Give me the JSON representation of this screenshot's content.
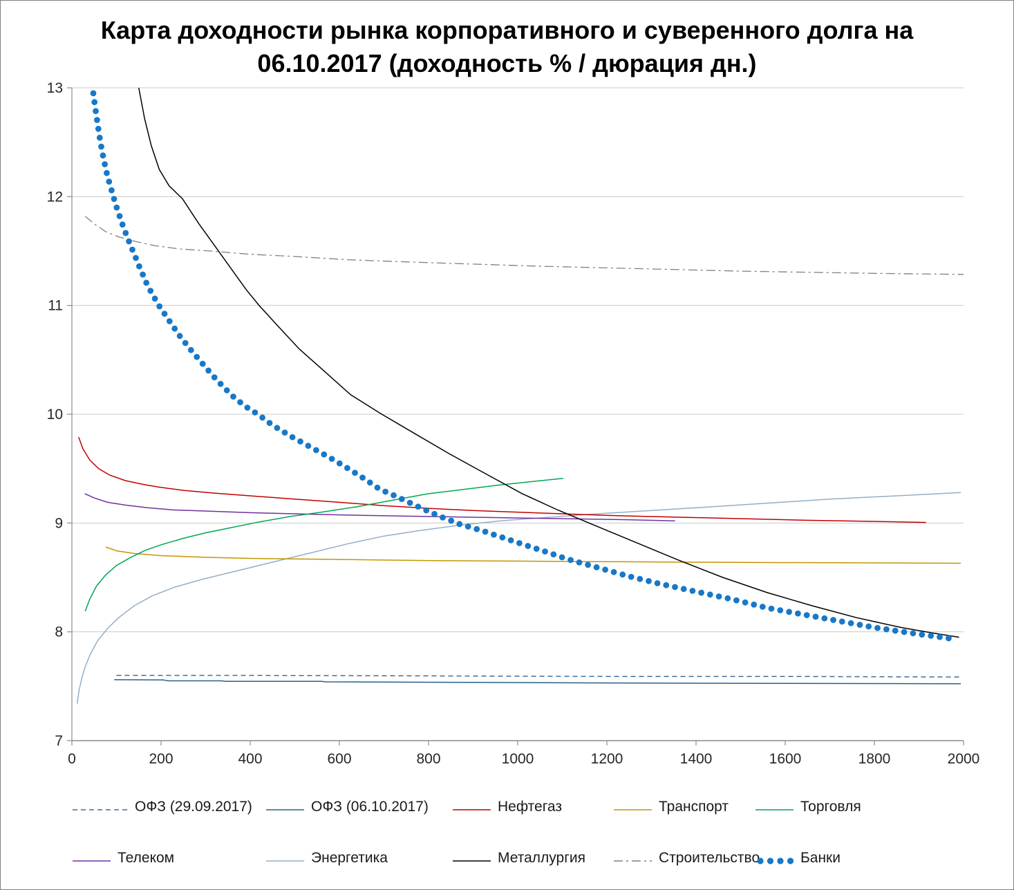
{
  "title": {
    "line1": "Карта доходности рынка корпоративного и суверенного долга на",
    "line2": "06.10.2017 (доходность % / дюрация дн.)"
  },
  "chart_data": {
    "type": "line",
    "title": "Карта доходности рынка корпоративного и суверенного долга на 06.10.2017 (доходность % / дюрация дн.)",
    "xlim": [
      0,
      2000
    ],
    "ylim": [
      7,
      13
    ],
    "xticks": [
      "0",
      "200",
      "400",
      "600",
      "800",
      "1000",
      "1200",
      "1400",
      "1600",
      "1800",
      "2000"
    ],
    "yticks": [
      "7",
      "8",
      "9",
      "10",
      "11",
      "12",
      "13"
    ],
    "grid": "horizontal",
    "legend_position": "bottom",
    "axis_color": "#8C8C8C",
    "grid_color": "#C9C9C9",
    "tick_label_color": "#262626",
    "series": [
      {
        "name": "ОФЗ (29.09.2017)",
        "color": "#3C6E9C",
        "style": "dashed",
        "points": [
          [
            100,
            7.6
          ],
          [
            400,
            7.6
          ],
          [
            800,
            7.595
          ],
          [
            1200,
            7.59
          ],
          [
            1600,
            7.59
          ],
          [
            1992,
            7.585
          ]
        ]
      },
      {
        "name": "ОФЗ (06.10.2017)",
        "color": "#2A5E86",
        "style": "solid",
        "points": [
          [
            95,
            7.56
          ],
          [
            205,
            7.558
          ],
          [
            215,
            7.55
          ],
          [
            335,
            7.55
          ],
          [
            345,
            7.545
          ],
          [
            560,
            7.545
          ],
          [
            570,
            7.54
          ],
          [
            900,
            7.535
          ],
          [
            1200,
            7.53
          ],
          [
            1500,
            7.527
          ],
          [
            1994,
            7.523
          ]
        ]
      },
      {
        "name": "Нефтегаз",
        "color": "#C00000",
        "style": "solid",
        "points": [
          [
            15,
            9.79
          ],
          [
            25,
            9.68
          ],
          [
            40,
            9.58
          ],
          [
            60,
            9.5
          ],
          [
            85,
            9.44
          ],
          [
            120,
            9.39
          ],
          [
            160,
            9.355
          ],
          [
            195,
            9.33
          ],
          [
            250,
            9.3
          ],
          [
            320,
            9.275
          ],
          [
            400,
            9.25
          ],
          [
            500,
            9.22
          ],
          [
            600,
            9.19
          ],
          [
            700,
            9.16
          ],
          [
            800,
            9.135
          ],
          [
            900,
            9.115
          ],
          [
            1000,
            9.1
          ],
          [
            1100,
            9.085
          ],
          [
            1200,
            9.07
          ],
          [
            1350,
            9.055
          ],
          [
            1500,
            9.04
          ],
          [
            1650,
            9.025
          ],
          [
            1800,
            9.015
          ],
          [
            1916,
            9.005
          ]
        ]
      },
      {
        "name": "Транспорт",
        "color": "#C49500",
        "style": "solid",
        "points": [
          [
            76,
            8.78
          ],
          [
            100,
            8.745
          ],
          [
            140,
            8.72
          ],
          [
            200,
            8.7
          ],
          [
            300,
            8.685
          ],
          [
            400,
            8.675
          ],
          [
            600,
            8.665
          ],
          [
            800,
            8.655
          ],
          [
            1000,
            8.65
          ],
          [
            1200,
            8.645
          ],
          [
            1400,
            8.64
          ],
          [
            1700,
            8.635
          ],
          [
            1994,
            8.63
          ]
        ]
      },
      {
        "name": "Торговля",
        "color": "#00A651",
        "style": "solid",
        "points": [
          [
            30,
            8.19
          ],
          [
            40,
            8.3
          ],
          [
            55,
            8.42
          ],
          [
            75,
            8.52
          ],
          [
            100,
            8.61
          ],
          [
            130,
            8.68
          ],
          [
            165,
            8.75
          ],
          [
            200,
            8.8
          ],
          [
            250,
            8.86
          ],
          [
            300,
            8.91
          ],
          [
            360,
            8.96
          ],
          [
            420,
            9.01
          ],
          [
            490,
            9.06
          ],
          [
            560,
            9.1
          ],
          [
            640,
            9.15
          ],
          [
            720,
            9.21
          ],
          [
            800,
            9.27
          ],
          [
            880,
            9.31
          ],
          [
            960,
            9.35
          ],
          [
            1030,
            9.38
          ],
          [
            1102,
            9.41
          ]
        ]
      },
      {
        "name": "Телеком",
        "color": "#7030A0",
        "style": "solid",
        "points": [
          [
            29,
            9.27
          ],
          [
            50,
            9.23
          ],
          [
            80,
            9.19
          ],
          [
            120,
            9.165
          ],
          [
            170,
            9.14
          ],
          [
            230,
            9.12
          ],
          [
            300,
            9.11
          ],
          [
            400,
            9.095
          ],
          [
            500,
            9.085
          ],
          [
            650,
            9.07
          ],
          [
            800,
            9.06
          ],
          [
            950,
            9.05
          ],
          [
            1100,
            9.04
          ],
          [
            1250,
            9.03
          ],
          [
            1353,
            9.02
          ]
        ]
      },
      {
        "name": "Энергетика",
        "color": "#94AEC6",
        "style": "solid",
        "points": [
          [
            12,
            7.34
          ],
          [
            16,
            7.46
          ],
          [
            22,
            7.57
          ],
          [
            30,
            7.68
          ],
          [
            42,
            7.8
          ],
          [
            58,
            7.92
          ],
          [
            80,
            8.03
          ],
          [
            105,
            8.13
          ],
          [
            140,
            8.24
          ],
          [
            180,
            8.33
          ],
          [
            230,
            8.41
          ],
          [
            290,
            8.48
          ],
          [
            360,
            8.55
          ],
          [
            440,
            8.63
          ],
          [
            530,
            8.72
          ],
          [
            620,
            8.81
          ],
          [
            700,
            8.88
          ],
          [
            780,
            8.93
          ],
          [
            870,
            8.98
          ],
          [
            960,
            9.02
          ],
          [
            1060,
            9.05
          ],
          [
            1160,
            9.08
          ],
          [
            1280,
            9.11
          ],
          [
            1400,
            9.14
          ],
          [
            1550,
            9.18
          ],
          [
            1700,
            9.22
          ],
          [
            1850,
            9.25
          ],
          [
            1994,
            9.28
          ]
        ]
      },
      {
        "name": "Металлургия",
        "color": "#000000",
        "style": "solid",
        "points": [
          [
            150,
            13.0
          ],
          [
            163,
            12.72
          ],
          [
            178,
            12.47
          ],
          [
            196,
            12.25
          ],
          [
            218,
            12.1
          ],
          [
            248,
            11.98
          ],
          [
            285,
            11.75
          ],
          [
            320,
            11.55
          ],
          [
            355,
            11.35
          ],
          [
            390,
            11.15
          ],
          [
            420,
            11.0
          ],
          [
            460,
            10.82
          ],
          [
            510,
            10.6
          ],
          [
            565,
            10.4
          ],
          [
            625,
            10.18
          ],
          [
            695,
            10.0
          ],
          [
            770,
            9.82
          ],
          [
            845,
            9.64
          ],
          [
            925,
            9.46
          ],
          [
            1010,
            9.27
          ],
          [
            1090,
            9.12
          ],
          [
            1160,
            9.0
          ],
          [
            1260,
            8.83
          ],
          [
            1360,
            8.66
          ],
          [
            1460,
            8.5
          ],
          [
            1560,
            8.36
          ],
          [
            1660,
            8.24
          ],
          [
            1760,
            8.13
          ],
          [
            1860,
            8.04
          ],
          [
            1930,
            7.99
          ],
          [
            1990,
            7.95
          ]
        ]
      },
      {
        "name": "Строительство",
        "color": "#7F7F7F",
        "style": "dashdot",
        "points": [
          [
            30,
            11.82
          ],
          [
            50,
            11.75
          ],
          [
            75,
            11.68
          ],
          [
            105,
            11.63
          ],
          [
            140,
            11.59
          ],
          [
            185,
            11.55
          ],
          [
            240,
            11.52
          ],
          [
            310,
            11.5
          ],
          [
            400,
            11.47
          ],
          [
            500,
            11.45
          ],
          [
            620,
            11.42
          ],
          [
            750,
            11.4
          ],
          [
            900,
            11.38
          ],
          [
            1050,
            11.36
          ],
          [
            1200,
            11.345
          ],
          [
            1350,
            11.33
          ],
          [
            1500,
            11.315
          ],
          [
            1650,
            11.305
          ],
          [
            1800,
            11.295
          ],
          [
            2000,
            11.285
          ]
        ]
      },
      {
        "name": "Банки",
        "color": "#1878C8",
        "style": "dots",
        "points": [
          [
            48,
            12.95
          ],
          [
            53,
            12.8
          ],
          [
            58,
            12.66
          ],
          [
            64,
            12.5
          ],
          [
            71,
            12.35
          ],
          [
            79,
            12.2
          ],
          [
            86,
            12.1
          ],
          [
            93,
            12.0
          ],
          [
            102,
            11.88
          ],
          [
            112,
            11.76
          ],
          [
            124,
            11.63
          ],
          [
            137,
            11.5
          ],
          [
            152,
            11.35
          ],
          [
            170,
            11.18
          ],
          [
            195,
            11.0
          ],
          [
            215,
            10.88
          ],
          [
            240,
            10.73
          ],
          [
            265,
            10.6
          ],
          [
            290,
            10.48
          ],
          [
            315,
            10.36
          ],
          [
            340,
            10.25
          ],
          [
            365,
            10.15
          ],
          [
            390,
            10.07
          ],
          [
            417,
            10.0
          ],
          [
            450,
            9.9
          ],
          [
            490,
            9.8
          ],
          [
            530,
            9.71
          ],
          [
            575,
            9.61
          ],
          [
            620,
            9.5
          ],
          [
            655,
            9.41
          ],
          [
            691,
            9.31
          ],
          [
            730,
            9.24
          ],
          [
            777,
            9.15
          ],
          [
            820,
            9.07
          ],
          [
            870,
            8.99
          ],
          [
            920,
            8.93
          ],
          [
            1000,
            8.82
          ],
          [
            1060,
            8.74
          ],
          [
            1110,
            8.67
          ],
          [
            1180,
            8.59
          ],
          [
            1250,
            8.51
          ],
          [
            1320,
            8.44
          ],
          [
            1400,
            8.37
          ],
          [
            1480,
            8.3
          ],
          [
            1560,
            8.22
          ],
          [
            1640,
            8.16
          ],
          [
            1720,
            8.1
          ],
          [
            1800,
            8.04
          ],
          [
            1880,
            7.99
          ],
          [
            1985,
            7.93
          ]
        ]
      }
    ]
  },
  "legend": {
    "rows": [
      [
        0,
        1,
        2,
        3,
        4
      ],
      [
        5,
        6,
        7,
        8,
        9
      ]
    ]
  }
}
